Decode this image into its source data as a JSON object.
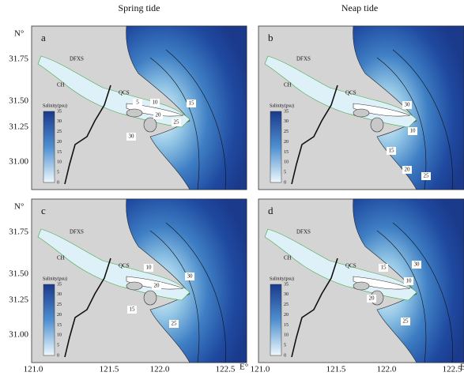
{
  "columns": [
    "Spring tide",
    "Neap tide"
  ],
  "y_axis": {
    "unit": "N°",
    "ticks": [
      "31.75",
      "31.50",
      "31.25",
      "31.00"
    ]
  },
  "x_axis": {
    "unit_left": "E°",
    "unit_right": "E",
    "ticks": [
      "121.0",
      "121.5",
      "122.0",
      "122.5"
    ]
  },
  "places": [
    "DFXS",
    "CH",
    "QCS"
  ],
  "colorbar": {
    "title": "Salinity(psu)",
    "ticks": [
      35,
      30,
      25,
      20,
      15,
      10,
      5,
      0
    ]
  },
  "panels": [
    {
      "label": "a",
      "contours": [
        5,
        10,
        20,
        25,
        30,
        15
      ]
    },
    {
      "label": "b",
      "contours": [
        30,
        10,
        15,
        20,
        25
      ]
    },
    {
      "label": "c",
      "contours": [
        10,
        20,
        30,
        15,
        25
      ]
    },
    {
      "label": "d",
      "contours": [
        15,
        30,
        10,
        20,
        25
      ]
    }
  ]
}
